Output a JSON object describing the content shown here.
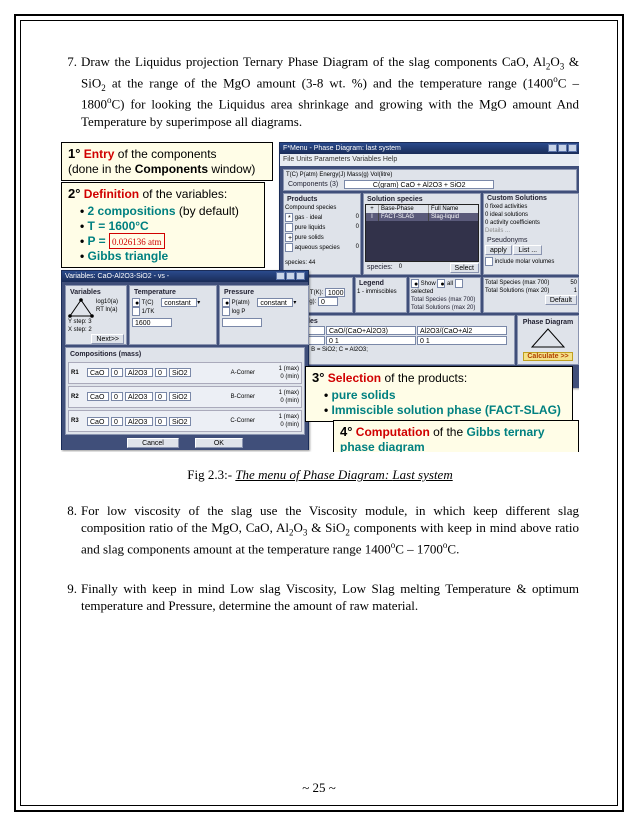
{
  "items": {
    "7": {
      "num": "7.",
      "text_html": "Draw the Liquidus projection Ternary Phase Diagram of the slag components CaO, Al<sub>2</sub>O<sub>3</sub> &amp; SiO<sub>2</sub> at the range of the MgO amount (3-8 wt. %) and the temperature range (1400<sup>o</sup>C – 1800<sup>o</sup>C) for looking the Liquidus area shrinkage and growing with the MgO amount And Temperature by superimpose all diagrams."
    },
    "8": {
      "num": "8.",
      "text_html": "For low viscosity of the slag use the Viscosity module, in which keep different slag composition ratio of the MgO, CaO, Al<sub>2</sub>O<sub>3</sub> &amp; SiO<sub>2</sub> components with keep in mind above ratio and slag components amount at the temperature range 1400<sup>o</sup>C – 1700<sup>o</sup>C."
    },
    "9": {
      "num": "9.",
      "text_html": "Finally with keep in mind Low slag Viscosity, Low Slag melting Temperature &amp; optimum temperature and Pressure, determine the amount of raw material."
    }
  },
  "callouts": {
    "c1": {
      "lead": "1°",
      "title1": "Entry",
      "title2": " of the components",
      "sub": "(done in the ",
      "sub_bold": "Components",
      "sub_end": " window)"
    },
    "c2": {
      "lead": "2°",
      "title1": "Definition",
      "title2": " of the variables:",
      "bullets": {
        "b1": {
          "label": "2 compositions",
          "suffix": " (by default)"
        },
        "b2": {
          "label": "T = 1600°C"
        },
        "b3a": {
          "prefix": "P = ",
          "val": "0.026136 atm"
        },
        "b4": {
          "label": "Gibbs triangle"
        }
      }
    },
    "c3": {
      "lead": "3°",
      "title1": "Selection",
      "title2": " of the products:",
      "b1": "pure solids",
      "b2": "Immiscible solution phase (FACT-SLAG)"
    },
    "c4": {
      "lead": "4°",
      "title1": "Computation",
      "title2": " of the ",
      "tail": "Gibbs ternary phase diagram"
    }
  },
  "windows": {
    "main": {
      "title": "F*Menu - Phase Diagram: last system",
      "menus": "File  Units  Parameters  Variables  Help",
      "components_label": "Components  (3)",
      "components_field": "C(gram) CaO  +  Al2O3  +  SiO2",
      "products": {
        "label": "Products",
        "rows": [
          "Compound species",
          "gas · ideal",
          "pure liquids",
          "pure solids",
          "aqueous species"
        ],
        "counts": [
          "",
          "0",
          "0",
          "",
          "0"
        ],
        "species": "species:   44"
      },
      "solution": {
        "label": "Solution species",
        "cols": [
          "+",
          "Base-Phase",
          "Full Name"
        ],
        "row": [
          "I",
          "FACT-SLAG",
          "Slag-liquid"
        ]
      },
      "custom": {
        "label": "Custom Solutions",
        "lines": [
          "0 fixed activities",
          "0 ideal solutions",
          "0 activity coefficients",
          "Details ..."
        ],
        "pseudo_label": "Pseudonyms",
        "pseudo_btns": [
          "apply",
          "List ..."
        ],
        "inc_label": "include molar volumes",
        "totals": [
          "Total Species (max 700)",
          "Total Solutions (max 20)"
        ],
        "totals_right": "Default"
      },
      "target": {
        "label": "Target",
        "rows": [
          "Estimate T(K):",
          "Quantity(g):"
        ],
        "vals": [
          "1000",
          "0"
        ]
      },
      "legend": {
        "label": "Legend",
        "txt": "1 - immiscibles"
      },
      "show_opts": [
        "Show",
        "all",
        "selected"
      ],
      "species_val": "0",
      "select_btn": "Select",
      "variables": {
        "label": "Variables",
        "row1": [
          "T(C)",
          "CaO/(CaO+Al2O3)",
          "Al2O3/(CaO+Al2"
        ],
        "row2": [
          "1600",
          "0  1",
          "0  1"
        ],
        "row3_label": "A =  CaO; B = SiO2; C = Al2O3;"
      },
      "phasediag": {
        "label": "Phase Diagram",
        "btn": "Calculate >>"
      }
    },
    "vars": {
      "title": "Variables: CaO-Al2O3-SiO2 - vs -",
      "var_label": "Variables",
      "temp_label": "Temperature",
      "press_label": "Pressure",
      "yfields": [
        "log10(a)",
        "RT ln(a)"
      ],
      "ystep": "Y step:  3",
      "xstep": "X step:  2",
      "temp_rows": [
        "T(C)",
        "1/TK"
      ],
      "temp_val": "1600",
      "const": "constant",
      "press_rows": [
        "P(atm)",
        "log P"
      ],
      "fixed": "fixed",
      "comp_label": "Compositions (mass)",
      "grid_rows": [
        [
          "R1",
          "CaO",
          "0",
          "Al2O3",
          "0",
          "SiO2",
          "A-Corner",
          "1 (max)",
          "0 (min)"
        ],
        [
          "R2",
          "CaO",
          "0",
          "Al2O3",
          "0",
          "SiO2",
          "B-Corner",
          "1 (max)",
          "0 (min)"
        ],
        [
          "R3",
          "CaO",
          "0",
          "Al2O3",
          "0",
          "SiO2",
          "C-Corner",
          "1 (max)",
          "0 (min)"
        ]
      ],
      "btns": [
        "Cancel",
        "OK"
      ]
    }
  },
  "caption": {
    "prefix": "Fig 2.3:- ",
    "italic": "The menu of Phase Diagram: ",
    "tail": "Last system"
  },
  "pagenum": "~ 25 ~",
  "style": {
    "box_bg": "#fffde7",
    "red": "#d00000",
    "teal": "#008080",
    "win_blue": "#3a5da8",
    "win_dark": "#1a2c58",
    "panel_bg": "#dfe3ea"
  }
}
